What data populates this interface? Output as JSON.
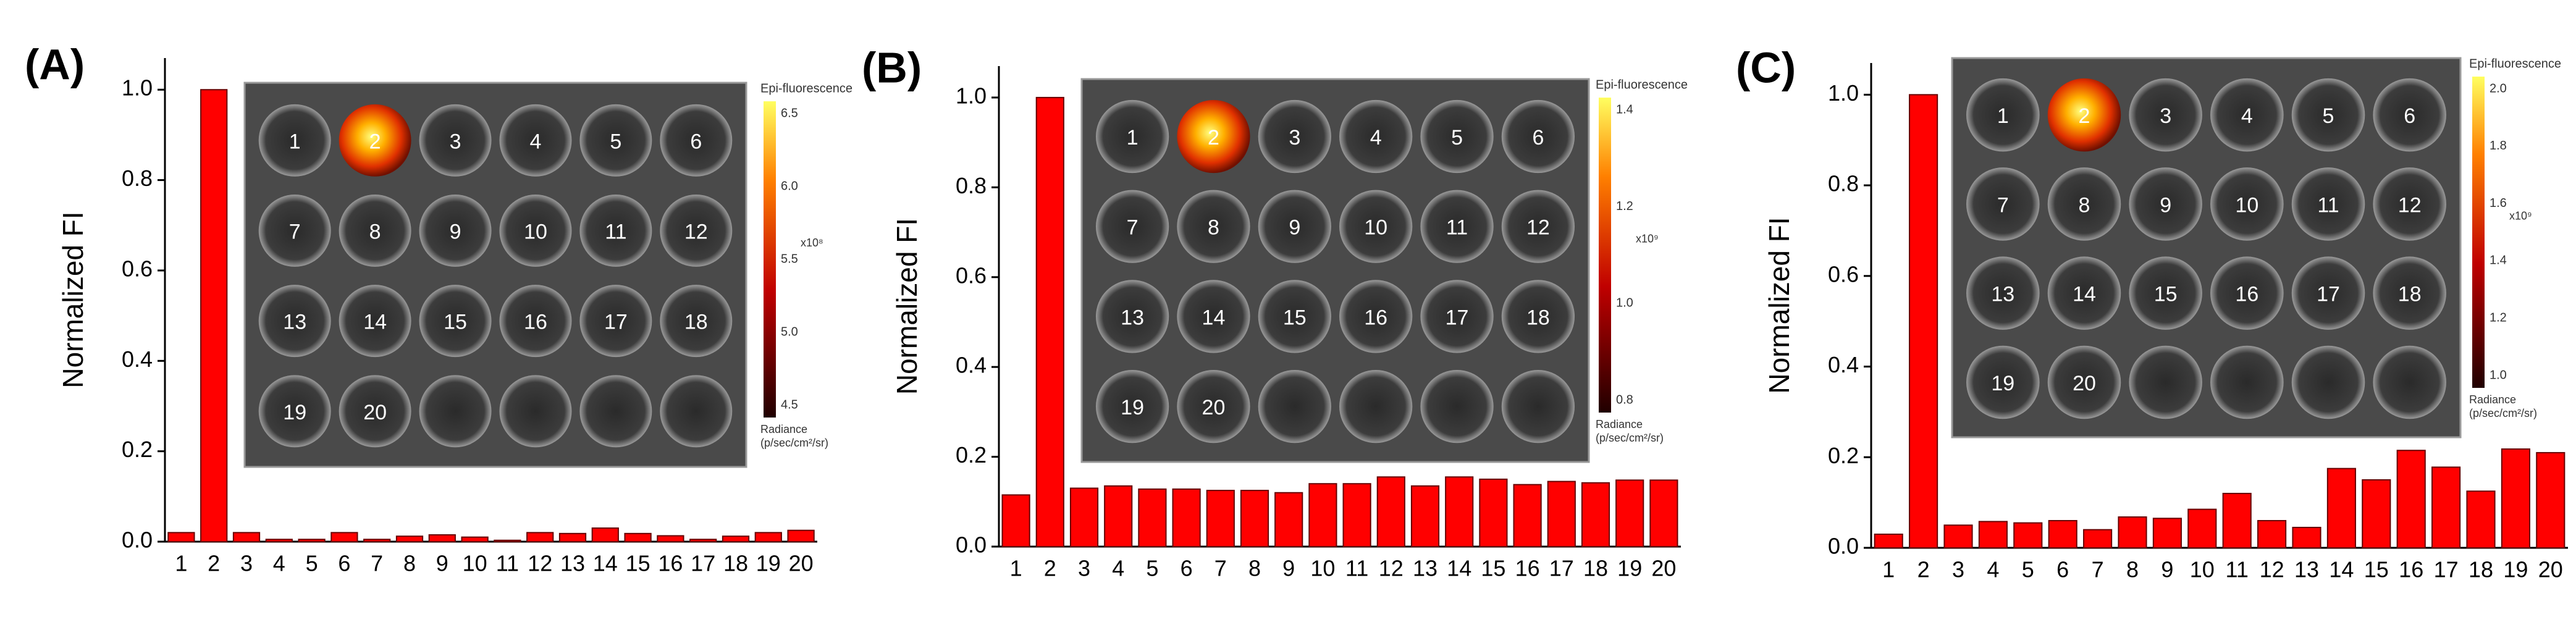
{
  "chart_data": [
    {
      "type": "bar",
      "panel_label": "(A)",
      "y_label": "Normalized FI",
      "color": "#ff0000",
      "categories": [
        "1",
        "2",
        "3",
        "4",
        "5",
        "6",
        "7",
        "8",
        "9",
        "10",
        "11",
        "12",
        "13",
        "14",
        "15",
        "16",
        "17",
        "18",
        "19",
        "20"
      ],
      "values": [
        0.02,
        1.0,
        0.02,
        0.005,
        0.005,
        0.02,
        0.005,
        0.012,
        0.015,
        0.01,
        0.003,
        0.02,
        0.018,
        0.03,
        0.018,
        0.013,
        0.005,
        0.012,
        0.02,
        0.025
      ],
      "ylim": [
        0,
        1.07
      ],
      "yticks": [
        {
          "value": 0,
          "label": "0.0"
        },
        0.2,
        0.4,
        0.6,
        0.8,
        {
          "value": 1,
          "label": "1.0"
        }
      ],
      "inset": {
        "well_labels": [
          "1",
          "2",
          "3",
          "4",
          "5",
          "6",
          "7",
          "8",
          "9",
          "10",
          "11",
          "12",
          "13",
          "14",
          "15",
          "16",
          "17",
          "18",
          "19",
          "20"
        ],
        "colorbar_title": "Epi-fluorescence",
        "colorbar_ticks": [
          "6.5",
          "6.0",
          "5.5",
          "5.0",
          "4.5"
        ],
        "exponent": "x10⁸",
        "unit_title": "Radiance",
        "unit": "(p/sec/cm²/sr)"
      }
    },
    {
      "type": "bar",
      "panel_label": "(B)",
      "y_label": "Normalized FI",
      "color": "#ff0000",
      "categories": [
        "1",
        "2",
        "3",
        "4",
        "5",
        "6",
        "7",
        "8",
        "9",
        "10",
        "11",
        "12",
        "13",
        "14",
        "15",
        "16",
        "17",
        "18",
        "19",
        "20"
      ],
      "values": [
        0.115,
        1.0,
        0.13,
        0.135,
        0.128,
        0.128,
        0.125,
        0.125,
        0.12,
        0.14,
        0.14,
        0.155,
        0.135,
        0.155,
        0.15,
        0.138,
        0.145,
        0.142,
        0.148,
        0.148
      ],
      "ylim": [
        0,
        1.07
      ],
      "yticks": [
        {
          "value": 0,
          "label": "0.0"
        },
        0.2,
        0.4,
        0.6,
        0.8,
        {
          "value": 1,
          "label": "1.0"
        }
      ],
      "inset": {
        "well_labels": [
          "1",
          "2",
          "3",
          "4",
          "5",
          "6",
          "7",
          "8",
          "9",
          "10",
          "11",
          "12",
          "13",
          "14",
          "15",
          "16",
          "17",
          "18",
          "19",
          "20"
        ],
        "colorbar_title": "Epi-fluorescence",
        "colorbar_ticks": [
          "1.4",
          "1.2",
          "1.0",
          "0.8"
        ],
        "exponent": "x10⁹",
        "unit_title": "Radiance",
        "unit": "(p/sec/cm²/sr)"
      }
    },
    {
      "type": "bar",
      "panel_label": "(C)",
      "y_label": "Normalized FI",
      "color": "#ff0000",
      "categories": [
        "1",
        "2",
        "3",
        "4",
        "5",
        "6",
        "7",
        "8",
        "9",
        "10",
        "11",
        "12",
        "13",
        "14",
        "15",
        "16",
        "17",
        "18",
        "19",
        "20"
      ],
      "values": [
        0.03,
        1.0,
        0.05,
        0.058,
        0.055,
        0.06,
        0.04,
        0.068,
        0.065,
        0.085,
        0.12,
        0.06,
        0.045,
        0.175,
        0.15,
        0.215,
        0.178,
        0.125,
        0.218,
        0.21
      ],
      "ylim": [
        0,
        1.07
      ],
      "yticks": [
        {
          "value": 0,
          "label": "0.0"
        },
        0.2,
        0.4,
        0.6,
        0.8,
        {
          "value": 1,
          "label": "1.0"
        }
      ],
      "inset": {
        "well_labels": [
          "1",
          "2",
          "3",
          "4",
          "5",
          "6",
          "7",
          "8",
          "9",
          "10",
          "11",
          "12",
          "13",
          "14",
          "15",
          "16",
          "17",
          "18",
          "19",
          "20"
        ],
        "colorbar_title": "Epi-fluorescence",
        "colorbar_ticks": [
          "2.0",
          "1.8",
          "1.6",
          "1.4",
          "1.2",
          "1.0"
        ],
        "exponent": "x10⁹",
        "unit_title": "Radiance",
        "unit": "(p/sec/cm²/sr)"
      }
    }
  ]
}
